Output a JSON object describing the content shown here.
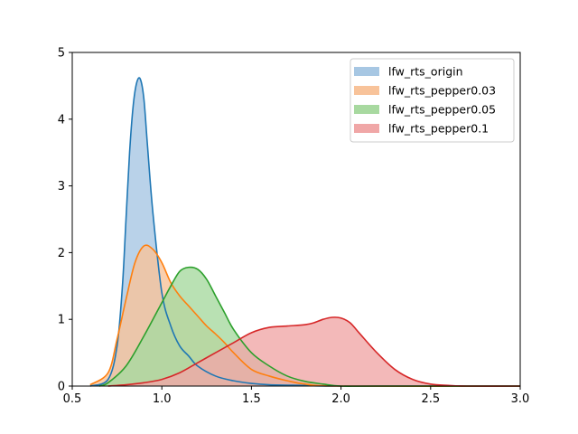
{
  "chart_data": {
    "type": "area",
    "title": "",
    "xlabel": "",
    "ylabel": "",
    "xlim": [
      0.5,
      3.0
    ],
    "ylim": [
      0,
      5
    ],
    "x_ticks": [
      0.5,
      1.0,
      1.5,
      2.0,
      2.5,
      3.0
    ],
    "x_tick_labels": [
      "0.5",
      "1.0",
      "1.5",
      "2.0",
      "2.5",
      "3.0"
    ],
    "y_ticks": [
      0,
      1,
      2,
      3,
      4,
      5
    ],
    "y_tick_labels": [
      "0",
      "1",
      "2",
      "3",
      "4",
      "5"
    ],
    "grid": false,
    "legend_position": "top-right",
    "series": [
      {
        "name": "lfw_rts_origin",
        "color": "#1f77b4",
        "fill_color": "#a7c7e3",
        "x": [
          0.6,
          0.7,
          0.75,
          0.78,
          0.8,
          0.82,
          0.84,
          0.86,
          0.88,
          0.9,
          0.92,
          0.95,
          1.0,
          1.05,
          1.1,
          1.15,
          1.2,
          1.3,
          1.4,
          1.5,
          1.6,
          1.8,
          2.0,
          3.0
        ],
        "y": [
          0.0,
          0.1,
          0.6,
          1.5,
          2.5,
          3.5,
          4.2,
          4.55,
          4.6,
          4.3,
          3.6,
          2.6,
          1.4,
          0.9,
          0.6,
          0.45,
          0.3,
          0.15,
          0.08,
          0.04,
          0.02,
          0.01,
          0.0,
          0.0
        ]
      },
      {
        "name": "lfw_rts_pepper0.03",
        "color": "#ff7f0e",
        "fill_color": "#f8c39a",
        "x": [
          0.6,
          0.7,
          0.75,
          0.8,
          0.85,
          0.9,
          0.95,
          1.0,
          1.05,
          1.1,
          1.15,
          1.2,
          1.25,
          1.3,
          1.35,
          1.4,
          1.5,
          1.6,
          1.7,
          1.8,
          2.0,
          3.0
        ],
        "y": [
          0.02,
          0.2,
          0.7,
          1.3,
          1.85,
          2.1,
          2.05,
          1.85,
          1.55,
          1.35,
          1.2,
          1.05,
          0.9,
          0.78,
          0.65,
          0.5,
          0.25,
          0.15,
          0.08,
          0.03,
          0.0,
          0.0
        ]
      },
      {
        "name": "lfw_rts_pepper0.05",
        "color": "#2ca02c",
        "fill_color": "#a8d9a0",
        "x": [
          0.65,
          0.7,
          0.8,
          0.9,
          1.0,
          1.05,
          1.1,
          1.15,
          1.2,
          1.25,
          1.3,
          1.35,
          1.4,
          1.5,
          1.6,
          1.7,
          1.8,
          1.9,
          2.0,
          2.2,
          3.0
        ],
        "y": [
          0.0,
          0.05,
          0.3,
          0.75,
          1.25,
          1.5,
          1.72,
          1.78,
          1.75,
          1.6,
          1.35,
          1.1,
          0.85,
          0.5,
          0.3,
          0.15,
          0.07,
          0.03,
          0.0,
          0.0,
          0.0
        ]
      },
      {
        "name": "lfw_rts_pepper0.1",
        "color": "#d62728",
        "fill_color": "#f0a7a7",
        "x": [
          0.7,
          0.8,
          0.9,
          1.0,
          1.1,
          1.2,
          1.3,
          1.4,
          1.5,
          1.6,
          1.7,
          1.8,
          1.85,
          1.9,
          1.95,
          2.0,
          2.05,
          2.1,
          2.2,
          2.3,
          2.4,
          2.5,
          2.6,
          2.7,
          3.0
        ],
        "y": [
          0.0,
          0.02,
          0.05,
          0.1,
          0.2,
          0.35,
          0.5,
          0.65,
          0.8,
          0.88,
          0.9,
          0.92,
          0.95,
          1.0,
          1.03,
          1.02,
          0.95,
          0.8,
          0.5,
          0.25,
          0.1,
          0.03,
          0.01,
          0.0,
          0.0
        ]
      }
    ]
  }
}
